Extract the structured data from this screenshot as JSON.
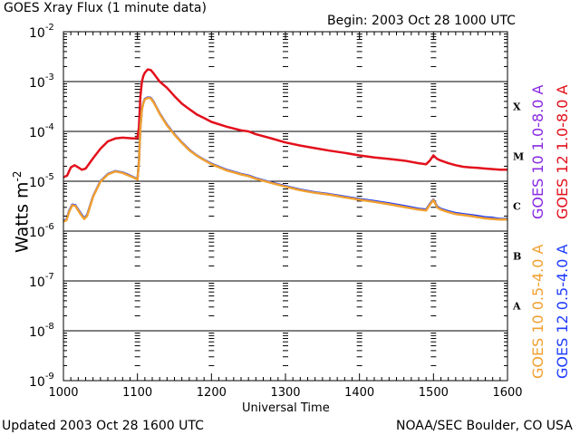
{
  "header": {
    "title": "GOES Xray Flux (1 minute data)",
    "begin": "Begin: 2003 Oct 28 1000 UTC"
  },
  "footer": {
    "updated": "Updated 2003 Oct 28 1600 UTC",
    "source": "NOAA/SEC Boulder, CO USA"
  },
  "chart_data": {
    "type": "line",
    "title": "GOES Xray Flux (1 minute data)",
    "xlabel": "Universal Time",
    "ylabel": "Watts m",
    "ylabel_superscript": "-2",
    "xlim": [
      1000,
      1600
    ],
    "ylim_exponent": [
      -9,
      -2
    ],
    "x_ticks": [
      "1000",
      "1100",
      "1200",
      "1300",
      "1400",
      "1500",
      "1600"
    ],
    "y_tick_base": "10",
    "y_ticks": [
      "-9",
      "-8",
      "-7",
      "-6",
      "-5",
      "-4",
      "-3",
      "-2"
    ],
    "flare_classes": [
      {
        "label": "A",
        "exp": -7.5
      },
      {
        "label": "B",
        "exp": -6.5
      },
      {
        "label": "C",
        "exp": -5.5
      },
      {
        "label": "M",
        "exp": -4.5
      },
      {
        "label": "X",
        "exp": -3.5
      }
    ],
    "series": [
      {
        "name": "GOES 12 1.0-8.0 A",
        "color": "#e3101c",
        "x": [
          1000,
          1005,
          1010,
          1015,
          1020,
          1025,
          1030,
          1040,
          1050,
          1060,
          1070,
          1080,
          1090,
          1095,
          1100,
          1102,
          1104,
          1106,
          1108,
          1110,
          1114,
          1118,
          1122,
          1126,
          1130,
          1140,
          1150,
          1160,
          1170,
          1180,
          1190,
          1200,
          1220,
          1240,
          1250,
          1260,
          1280,
          1300,
          1320,
          1340,
          1360,
          1380,
          1400,
          1420,
          1440,
          1460,
          1480,
          1490,
          1495,
          1500,
          1505,
          1510,
          1520,
          1530,
          1540,
          1550,
          1560,
          1570,
          1580,
          1590,
          1600
        ],
        "y": [
          1.2e-05,
          1.3e-05,
          1.9e-05,
          2.1e-05,
          1.9e-05,
          1.7e-05,
          1.8e-05,
          2.9e-05,
          4.5e-05,
          6.3e-05,
          7.2e-05,
          7.5e-05,
          7.3e-05,
          7.2e-05,
          7.4e-05,
          0.00012,
          0.0005,
          0.001,
          0.0013,
          0.0015,
          0.00175,
          0.0017,
          0.00145,
          0.0012,
          0.001,
          0.00075,
          0.00051,
          0.00036,
          0.00028,
          0.00022,
          0.000185,
          0.000155,
          0.000125,
          0.000105,
          0.0001,
          8.8e-05,
          7.3e-05,
          6e-05,
          5.2e-05,
          4.6e-05,
          4.1e-05,
          3.7e-05,
          3.3e-05,
          3e-05,
          2.8e-05,
          2.6e-05,
          2.3e-05,
          2.2e-05,
          2.6e-05,
          3.3e-05,
          2.8e-05,
          2.6e-05,
          2.3e-05,
          2.1e-05,
          1.95e-05,
          1.9e-05,
          1.85e-05,
          1.8e-05,
          1.75e-05,
          1.7e-05,
          1.7e-05
        ]
      },
      {
        "name": "GOES 10 1.0-8.0 A",
        "color": "#8a2be2",
        "x": [],
        "y": []
      },
      {
        "name": "GOES 12 0.5-4.0 A",
        "color": "#1f3cff",
        "x": [
          1000,
          1004,
          1008,
          1012,
          1016,
          1020,
          1024,
          1028,
          1032,
          1040,
          1050,
          1060,
          1070,
          1080,
          1090,
          1095,
          1100,
          1102,
          1104,
          1106,
          1108,
          1110,
          1114,
          1118,
          1122,
          1126,
          1130,
          1140,
          1150,
          1160,
          1170,
          1180,
          1190,
          1200,
          1220,
          1240,
          1250,
          1260,
          1280,
          1300,
          1320,
          1340,
          1360,
          1380,
          1400,
          1420,
          1440,
          1460,
          1480,
          1490,
          1495,
          1500,
          1505,
          1510,
          1520,
          1530,
          1540,
          1550,
          1560,
          1570,
          1580,
          1590,
          1600
        ],
        "y": [
          1.6e-06,
          1.7e-06,
          2.6e-06,
          3.4e-06,
          3.3e-06,
          2.7e-06,
          2.2e-06,
          1.8e-06,
          2.1e-06,
          5e-06,
          1e-05,
          1.4e-05,
          1.6e-05,
          1.5e-05,
          1.3e-05,
          1.2e-05,
          1.1e-05,
          2.5e-05,
          0.00012,
          0.00028,
          0.00038,
          0.00045,
          0.00048,
          0.00047,
          0.00039,
          0.0003,
          0.00023,
          0.000135,
          8.8e-05,
          6e-05,
          4.3e-05,
          3.3e-05,
          2.7e-05,
          2.25e-05,
          1.7e-05,
          1.4e-05,
          1.3e-05,
          1.15e-05,
          9.5e-06,
          8e-06,
          6.8e-06,
          6e-06,
          5.5e-06,
          4.9e-06,
          4.4e-06,
          4e-06,
          3.6e-06,
          3.2e-06,
          2.8e-06,
          2.7e-06,
          3.5e-06,
          4.3e-06,
          3.1e-06,
          2.8e-06,
          2.5e-06,
          2.3e-06,
          2.2e-06,
          2.1e-06,
          2e-06,
          1.9e-06,
          1.85e-06,
          1.75e-06,
          1.75e-06
        ]
      },
      {
        "name": "GOES 10 0.5-4.0 A",
        "color": "#f0a030",
        "x": [
          1000,
          1004,
          1008,
          1012,
          1016,
          1020,
          1024,
          1028,
          1032,
          1040,
          1050,
          1060,
          1070,
          1080,
          1090,
          1095,
          1100,
          1102,
          1104,
          1106,
          1108,
          1110,
          1114,
          1118,
          1122,
          1126,
          1130,
          1140,
          1150,
          1160,
          1170,
          1180,
          1190,
          1200,
          1220,
          1240,
          1250,
          1260,
          1280,
          1300,
          1320,
          1340,
          1360,
          1380,
          1400,
          1420,
          1440,
          1460,
          1480,
          1490,
          1495,
          1500,
          1505,
          1510,
          1520,
          1530,
          1540,
          1550,
          1560,
          1570,
          1580,
          1590,
          1600
        ],
        "y": [
          1.55e-06,
          1.65e-06,
          2.5e-06,
          3.3e-06,
          3.2e-06,
          2.6e-06,
          2.1e-06,
          1.75e-06,
          2e-06,
          4.9e-06,
          9.8e-06,
          1.37e-05,
          1.57e-05,
          1.47e-05,
          1.27e-05,
          1.18e-05,
          1.08e-05,
          2.4e-05,
          0.000118,
          0.000275,
          0.00037,
          0.00044,
          0.00047,
          0.00046,
          0.00038,
          0.000295,
          0.000225,
          0.000132,
          8.6e-05,
          5.9e-05,
          4.2e-05,
          3.25e-05,
          2.65e-05,
          2.2e-05,
          1.66e-05,
          1.37e-05,
          1.27e-05,
          1.12e-05,
          9.3e-06,
          7.8e-06,
          6.6e-06,
          5.85e-06,
          5.35e-06,
          4.75e-06,
          4.25e-06,
          3.85e-06,
          3.45e-06,
          3.05e-06,
          2.7e-06,
          2.6e-06,
          3.4e-06,
          4.2e-06,
          3e-06,
          2.7e-06,
          2.4e-06,
          2.2e-06,
          2.1e-06,
          2e-06,
          1.9e-06,
          1.8e-06,
          1.75e-06,
          1.7e-06,
          1.7e-06
        ]
      }
    ],
    "legend": [
      {
        "label": "GOES 10 1.0-8.0 A",
        "color": "#8a2be2"
      },
      {
        "label": "GOES 12 1.0-8.0 A",
        "color": "#e3101c"
      },
      {
        "label": "GOES 10 0.5-4.0 A",
        "color": "#f0a030"
      },
      {
        "label": "GOES 12 0.5-4.0 A",
        "color": "#1f3cff"
      }
    ]
  }
}
